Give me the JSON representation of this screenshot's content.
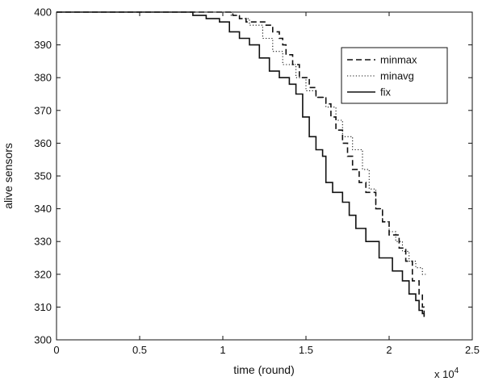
{
  "chart_data": {
    "type": "line",
    "title": "",
    "xlabel": "time (round)",
    "ylabel": "alive sensors",
    "x_multiplier_label": "x 10",
    "x_multiplier_exponent": "4",
    "xlim": [
      0,
      2.5
    ],
    "ylim": [
      300,
      400
    ],
    "x_ticks": [
      "0",
      "0.5",
      "1",
      "1.5",
      "2",
      "2.5"
    ],
    "y_ticks": [
      "300",
      "310",
      "320",
      "330",
      "340",
      "350",
      "360",
      "370",
      "380",
      "390",
      "400"
    ],
    "grid": false,
    "legend_position": "top-right",
    "series": [
      {
        "name": "minmax",
        "style": "dashed",
        "color": "#111111",
        "points": [
          [
            0,
            400
          ],
          [
            1.05,
            400
          ],
          [
            1.06,
            399
          ],
          [
            1.1,
            398
          ],
          [
            1.14,
            397
          ],
          [
            1.25,
            397
          ],
          [
            1.26,
            396
          ],
          [
            1.3,
            394
          ],
          [
            1.34,
            392
          ],
          [
            1.36,
            390
          ],
          [
            1.38,
            387
          ],
          [
            1.42,
            384
          ],
          [
            1.46,
            380
          ],
          [
            1.52,
            377
          ],
          [
            1.56,
            374
          ],
          [
            1.62,
            372
          ],
          [
            1.65,
            368
          ],
          [
            1.68,
            364
          ],
          [
            1.72,
            360
          ],
          [
            1.75,
            356
          ],
          [
            1.78,
            352
          ],
          [
            1.82,
            348
          ],
          [
            1.86,
            345
          ],
          [
            1.92,
            340
          ],
          [
            1.96,
            336
          ],
          [
            2.0,
            332
          ],
          [
            2.06,
            328
          ],
          [
            2.1,
            324
          ],
          [
            2.14,
            318
          ],
          [
            2.18,
            314
          ],
          [
            2.2,
            310
          ],
          [
            2.21,
            307
          ]
        ]
      },
      {
        "name": "minavg",
        "style": "dotted",
        "color": "#111111",
        "points": [
          [
            0,
            400
          ],
          [
            0.95,
            400
          ],
          [
            1.05,
            399
          ],
          [
            1.1,
            398
          ],
          [
            1.16,
            396
          ],
          [
            1.24,
            392
          ],
          [
            1.3,
            388
          ],
          [
            1.36,
            384
          ],
          [
            1.44,
            380
          ],
          [
            1.5,
            376
          ],
          [
            1.56,
            374
          ],
          [
            1.62,
            371
          ],
          [
            1.68,
            367
          ],
          [
            1.72,
            362
          ],
          [
            1.78,
            358
          ],
          [
            1.84,
            352
          ],
          [
            1.88,
            346
          ],
          [
            1.92,
            340
          ],
          [
            1.96,
            336
          ],
          [
            2.0,
            333
          ],
          [
            2.04,
            330
          ],
          [
            2.08,
            327
          ],
          [
            2.12,
            324
          ],
          [
            2.16,
            322
          ],
          [
            2.2,
            320
          ],
          [
            2.22,
            320
          ]
        ]
      },
      {
        "name": "fix",
        "style": "solid",
        "color": "#111111",
        "points": [
          [
            0,
            400
          ],
          [
            0.78,
            400
          ],
          [
            0.82,
            399
          ],
          [
            0.9,
            398
          ],
          [
            0.98,
            397
          ],
          [
            1.04,
            394
          ],
          [
            1.1,
            392
          ],
          [
            1.16,
            390
          ],
          [
            1.22,
            386
          ],
          [
            1.28,
            382
          ],
          [
            1.34,
            380
          ],
          [
            1.4,
            378
          ],
          [
            1.44,
            375
          ],
          [
            1.48,
            368
          ],
          [
            1.52,
            362
          ],
          [
            1.56,
            358
          ],
          [
            1.6,
            356
          ],
          [
            1.62,
            348
          ],
          [
            1.66,
            345
          ],
          [
            1.72,
            342
          ],
          [
            1.76,
            338
          ],
          [
            1.8,
            334
          ],
          [
            1.86,
            330
          ],
          [
            1.94,
            325
          ],
          [
            2.02,
            321
          ],
          [
            2.08,
            318
          ],
          [
            2.12,
            314
          ],
          [
            2.16,
            312
          ],
          [
            2.18,
            309
          ],
          [
            2.2,
            308
          ],
          [
            2.21,
            307
          ]
        ]
      }
    ]
  }
}
